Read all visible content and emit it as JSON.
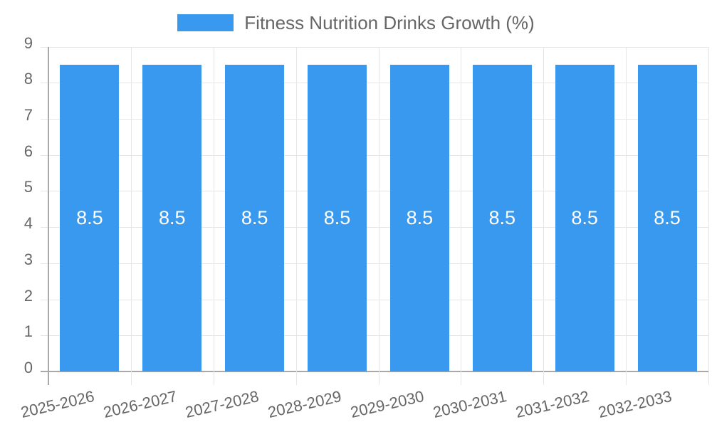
{
  "chart_data": {
    "type": "bar",
    "title": "",
    "legend": {
      "label": "Fitness Nutrition Drinks Growth (%)",
      "position": "top"
    },
    "categories": [
      "2025-2026",
      "2026-2027",
      "2027-2028",
      "2028-2029",
      "2029-2030",
      "2030-2031",
      "2031-2032",
      "2032-2033"
    ],
    "series": [
      {
        "name": "Fitness Nutrition Drinks Growth (%)",
        "values": [
          8.5,
          8.5,
          8.5,
          8.5,
          8.5,
          8.5,
          8.5,
          8.5
        ]
      }
    ],
    "data_labels": [
      "8.5",
      "8.5",
      "8.5",
      "8.5",
      "8.5",
      "8.5",
      "8.5",
      "8.5"
    ],
    "xlabel": "",
    "ylabel": "",
    "ylim": [
      0,
      9
    ],
    "yticks": [
      0,
      1,
      2,
      3,
      4,
      5,
      6,
      7,
      8,
      9
    ],
    "grid": true,
    "colors": {
      "bar": "#3999EE",
      "grid_line": "#E6E6E6",
      "axis_line": "#A9A9A9",
      "tick_text": "#666666",
      "legend_text": "#666666",
      "data_label_text": "#FFFFFF",
      "background": "#FFFFFF"
    }
  }
}
